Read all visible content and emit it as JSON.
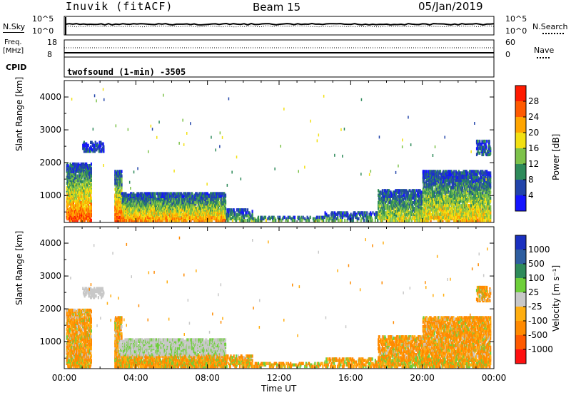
{
  "header": {
    "site": "Inuvik (fitACF)",
    "beam": "Beam 15",
    "date": "05/Jan/2019"
  },
  "top_panels": {
    "nsky_label": "N.Sky",
    "nsky_top": "10^5",
    "nsky_bottom": "10^0",
    "nsearch_label": "N.Search",
    "nsearch_top": "10^5",
    "nsearch_bottom": "10^0",
    "freq_label_1": "Freq.",
    "freq_label_2": "[MHz]",
    "freq_top": "18",
    "freq_bottom": "8",
    "nave_label": "Nave",
    "nave_top": "60",
    "nave_bottom": "0",
    "cpid_label": "CPID",
    "mode_text": "twofsound (1-min) -3505"
  },
  "colors": {
    "power": [
      "#1515ff",
      "#2244aa",
      "#2e8a5a",
      "#7dc24a",
      "#f2e012",
      "#ffa500",
      "#ff5a00",
      "#ff1a00"
    ],
    "velocity": [
      "#ff1010",
      "#ff5a00",
      "#ff8a00",
      "#ffae10",
      "#c8c8c8",
      "#6ecf3a",
      "#2e8a5a",
      "#2e5ea0",
      "#1a30c0"
    ]
  },
  "chart_data": [
    {
      "type": "heatmap",
      "name": "power",
      "ylabel": "Slant Range [km]",
      "xlabel": "",
      "yticks": [
        "1000",
        "2000",
        "3000",
        "4000"
      ],
      "ylim": [
        180,
        4500
      ],
      "xlim": [
        0,
        24
      ],
      "colorbar_label": "Power [dB]",
      "colorbar_ticks": [
        "4",
        "8",
        "12",
        "16",
        "20",
        "24",
        "28"
      ],
      "colorbar_range": [
        0,
        30
      ]
    },
    {
      "type": "heatmap",
      "name": "velocity",
      "ylabel": "Slant Range [km]",
      "xlabel": "Time UT",
      "yticks": [
        "1000",
        "2000",
        "3000",
        "4000"
      ],
      "xticks": [
        "00:00",
        "04:00",
        "08:00",
        "12:00",
        "16:00",
        "20:00",
        "00:00"
      ],
      "ylim": [
        180,
        4500
      ],
      "xlim": [
        0,
        24
      ],
      "colorbar_label": "Velocity [m s⁻¹]",
      "colorbar_ticks": [
        "1000",
        "500",
        "100",
        "25",
        "-25",
        "-100",
        "-500",
        "-1000"
      ]
    }
  ]
}
